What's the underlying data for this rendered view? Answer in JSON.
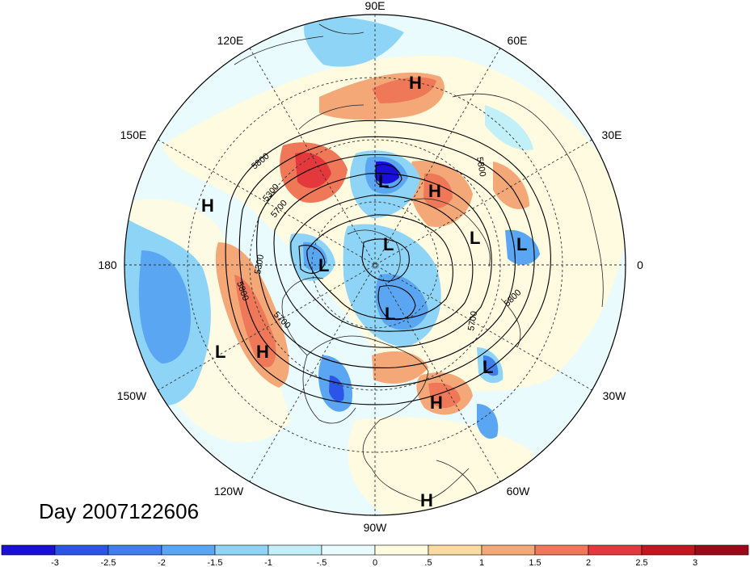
{
  "title": "Day 2007122606",
  "longitude_labels": {
    "top": "90E",
    "bottom": "90W",
    "left": "180",
    "right": "0",
    "upper_left_1": "120E",
    "upper_left_2": "150E",
    "upper_right_1": "60E",
    "upper_right_2": "30E",
    "lower_left_1": "150W",
    "lower_left_2": "120W",
    "lower_right_1": "30W",
    "lower_right_2": "60W"
  },
  "contour_labels": [
    "5800",
    "5300",
    "5700",
    "5300",
    "5800",
    "5700",
    "5700",
    "5800",
    "5800"
  ],
  "pressure_centers": [
    {
      "type": "H"
    },
    {
      "type": "L"
    },
    {
      "type": "H"
    },
    {
      "type": "H"
    },
    {
      "type": "L"
    },
    {
      "type": "L"
    },
    {
      "type": "L"
    },
    {
      "type": "L"
    },
    {
      "type": "L"
    },
    {
      "type": "L"
    },
    {
      "type": "H"
    },
    {
      "type": "L"
    },
    {
      "type": "H"
    },
    {
      "type": "H"
    }
  ],
  "colorbar": {
    "ticks": [
      "-3",
      "-2.5",
      "-2",
      "-1.5",
      "-1",
      "-.5",
      "0",
      ".5",
      "1",
      "1.5",
      "2",
      "2.5",
      "3"
    ],
    "colors": [
      "#1a0fd6",
      "#2b55e8",
      "#3f7fee",
      "#5aa6f2",
      "#8ed4f6",
      "#c2f0f8",
      "#e9fbfc",
      "#fffbe0",
      "#fbdca0",
      "#f4a878",
      "#ee7858",
      "#e4393c",
      "#c4161e",
      "#9a0a1a"
    ]
  }
}
